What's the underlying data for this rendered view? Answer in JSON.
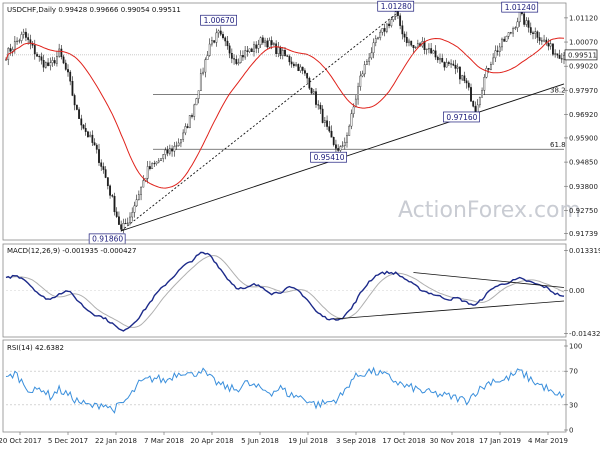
{
  "chart_data": [
    {
      "type": "candlestick",
      "header": {
        "symbol": "USDCHF,Daily",
        "open": "0.99428",
        "high": "0.99666",
        "low": "0.99054",
        "close": "0.99511"
      },
      "ylim": [
        0.9155,
        1.0155
      ],
      "y_ticks": [
        "1.01120",
        "1.00070",
        "0.99020",
        "0.97970",
        "0.96920",
        "0.95900",
        "0.94850",
        "0.93800",
        "0.92750",
        "0.91739"
      ],
      "last_price": "0.99511",
      "x_ticks": [
        "20 Oct 2017",
        "5 Dec 2017",
        "22 Jan 2018",
        "7 Mar 2018",
        "20 Apr 2018",
        "5 Jun 2018",
        "19 Jul 2018",
        "3 Sep 2018",
        "17 Oct 2018",
        "30 Nov 2018",
        "17 Jan 2019",
        "4 Mar 2019"
      ],
      "price_path": [
        0.995,
        1.0,
        1.004,
        0.998,
        0.992,
        0.99,
        0.996,
        0.986,
        0.97,
        0.962,
        0.955,
        0.945,
        0.932,
        0.9186,
        0.925,
        0.935,
        0.945,
        0.948,
        0.952,
        0.955,
        0.96,
        0.97,
        0.985,
        1.0,
        1.004,
        0.998,
        0.993,
        0.996,
        0.998,
        1.002,
        0.999,
        0.996,
        0.993,
        0.99,
        0.985,
        0.975,
        0.965,
        0.955,
        0.9541,
        0.968,
        0.985,
        0.995,
        1.002,
        1.008,
        1.0128,
        1.003,
        0.998,
        1.0,
        0.997,
        0.993,
        0.99,
        0.988,
        0.982,
        0.9716,
        0.985,
        0.995,
        1.0,
        1.005,
        1.0124,
        1.007,
        1.004,
        1.0,
        0.996,
        0.995
      ],
      "swing_labels": [
        {
          "text": "0.91860",
          "bar": 13,
          "value": 0.9186,
          "pos": "below"
        },
        {
          "text": "1.00670",
          "bar": 24,
          "value": 1.0067,
          "pos": "above"
        },
        {
          "text": "0.95410",
          "bar": 38,
          "value": 0.9541,
          "pos": "below"
        },
        {
          "text": "1.01280",
          "bar": 44,
          "value": 1.0128,
          "pos": "above"
        },
        {
          "text": "0.97160",
          "bar": 53,
          "value": 0.9716,
          "pos": "below"
        },
        {
          "text": "1.01240",
          "bar": 58,
          "value": 1.0124,
          "pos": "above"
        }
      ],
      "fib_levels": [
        {
          "label": "38.2",
          "value": 0.9779
        },
        {
          "label": "61.8",
          "value": 0.9541
        }
      ],
      "trendlines": [
        {
          "style": "solid",
          "from": {
            "bar": 13,
            "value": 0.9186
          },
          "to": {
            "bar": 63,
            "value": 0.9825
          }
        },
        {
          "style": "dashed",
          "from": {
            "bar": 13,
            "value": 0.9186
          },
          "to": {
            "bar": 44,
            "value": 1.0128
          }
        }
      ],
      "colors": {
        "candle": "#1a1a1a",
        "moving_average": "#e0231c",
        "fib": "#555555"
      },
      "watermark": "ActionForex.com"
    },
    {
      "type": "line",
      "header": "MACD(12,26,9) -0.001935 -0.000427",
      "ylim": [
        -0.0145,
        0.0135
      ],
      "y_ticks": [
        "0.013319",
        "0.00",
        "-0.014323"
      ],
      "macd_path": [
        0.004,
        0.005,
        0.004,
        0.001,
        -0.002,
        -0.003,
        -0.001,
        0.0,
        -0.003,
        -0.006,
        -0.008,
        -0.009,
        -0.011,
        -0.0135,
        -0.012,
        -0.009,
        -0.005,
        -0.001,
        0.002,
        0.005,
        0.008,
        0.01,
        0.0125,
        0.012,
        0.008,
        0.004,
        0.001,
        0.0005,
        0.002,
        0.001,
        -0.001,
        -0.0005,
        0.001,
        0.0,
        -0.003,
        -0.007,
        -0.009,
        -0.0098,
        -0.009,
        -0.006,
        -0.001,
        0.003,
        0.0055,
        0.006,
        0.0058,
        0.004,
        0.002,
        0.0,
        -0.001,
        -0.002,
        -0.003,
        -0.0025,
        -0.004,
        -0.005,
        -0.002,
        0.001,
        0.002,
        0.003,
        0.004,
        0.003,
        0.002,
        0.001,
        -0.001,
        -0.0019
      ],
      "trendlines": [
        {
          "from": {
            "bar": 46,
            "value": 0.006
          },
          "to": {
            "bar": 67,
            "value": 0.001
          }
        },
        {
          "from": {
            "bar": 37,
            "value": -0.0095
          },
          "to": {
            "bar": 67,
            "value": -0.0035
          }
        }
      ],
      "colors": {
        "macd": "#1c2a8a",
        "signal": "#b0b0b0"
      }
    },
    {
      "type": "line",
      "header": "RSI(14) 42.6382",
      "ylim": [
        0,
        100
      ],
      "y_ticks": [
        "100",
        "70",
        "30",
        "0"
      ],
      "rsi_path": [
        60,
        68,
        55,
        45,
        50,
        40,
        48,
        42,
        35,
        30,
        28,
        32,
        24,
        30,
        40,
        55,
        60,
        62,
        58,
        66,
        70,
        65,
        72,
        62,
        55,
        50,
        48,
        56,
        52,
        48,
        45,
        50,
        42,
        40,
        36,
        30,
        32,
        35,
        42,
        60,
        66,
        70,
        68,
        64,
        58,
        52,
        50,
        46,
        44,
        42,
        40,
        38,
        35,
        45,
        52,
        60,
        58,
        64,
        70,
        62,
        55,
        50,
        40,
        43
      ],
      "levels": [
        70,
        30
      ],
      "colors": {
        "rsi": "#3a8fdc"
      }
    }
  ]
}
